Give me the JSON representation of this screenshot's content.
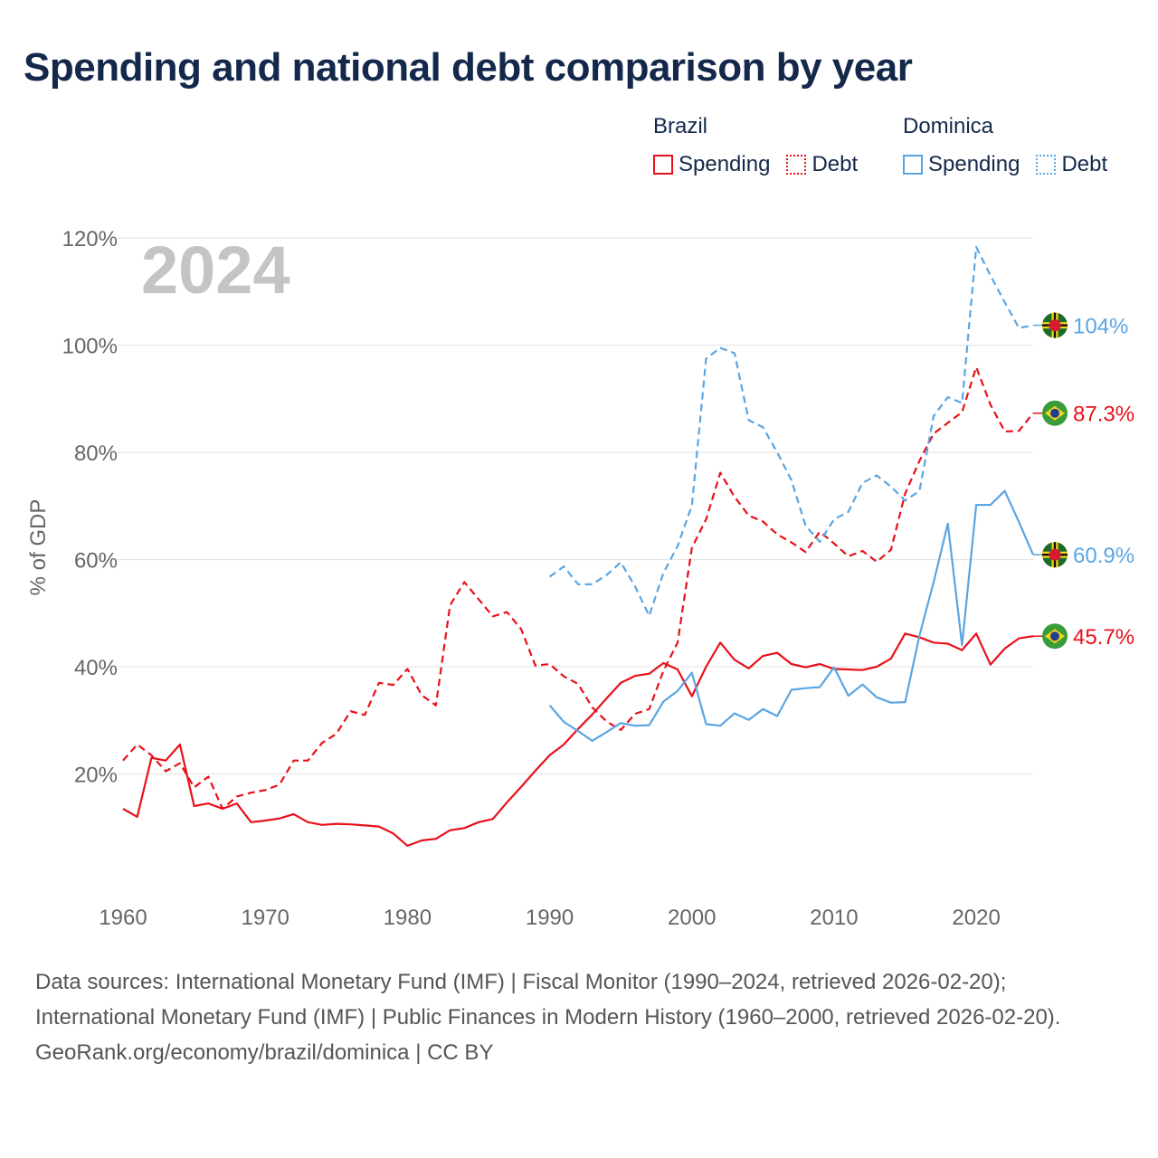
{
  "title": "Spending and national debt comparison by year",
  "legend": {
    "groups": [
      {
        "country": "Brazil",
        "color": "#e8101a",
        "items": [
          {
            "label": "Spending",
            "style": "solid"
          },
          {
            "label": "Debt",
            "style": "dotted"
          }
        ]
      },
      {
        "country": "Dominica",
        "color": "#5aa5e2",
        "items": [
          {
            "label": "Spending",
            "style": "solid"
          },
          {
            "label": "Debt",
            "style": "dotted"
          }
        ]
      }
    ]
  },
  "footer": {
    "sources": "Data sources: International Monetary Fund (IMF) | Fiscal Monitor (1990–2024, retrieved 2026-02-20); International Monetary Fund (IMF) | Public Finances in Modern History (1960–2000, retrieved 2026-02-20).",
    "credit": "GeoRank.org/economy/brazil/dominica | CC BY"
  },
  "chart_data": {
    "type": "line",
    "title": "Spending and national debt comparison by year",
    "year_label": "2024",
    "xlabel": "",
    "ylabel": "% of GDP",
    "xlim": [
      1960,
      2024
    ],
    "ylim": [
      0,
      120
    ],
    "x_ticks": [
      1960,
      1970,
      1980,
      1990,
      2000,
      2010,
      2020
    ],
    "y_ticks": [
      20,
      40,
      60,
      80,
      100,
      120
    ],
    "y_tick_labels": [
      "20%",
      "40%",
      "60%",
      "80%",
      "100%",
      "120%"
    ],
    "grid": true,
    "colors": {
      "brazil": "#e8101a",
      "dominica": "#5aa5e2",
      "grid": "#e6e6e6",
      "axis_text": "#666666",
      "year_watermark": "#c4c4c4"
    },
    "series": [
      {
        "name": "Brazil Spending",
        "country": "Brazil",
        "flag": "brazil-flag-icon",
        "color": "#e8101a",
        "dash": "solid",
        "end_label": "45.7%",
        "x": [
          1960,
          1961,
          1962,
          1963,
          1964,
          1965,
          1966,
          1967,
          1968,
          1969,
          1970,
          1971,
          1972,
          1973,
          1974,
          1975,
          1976,
          1977,
          1978,
          1979,
          1980,
          1981,
          1982,
          1983,
          1984,
          1985,
          1986,
          1987,
          1988,
          1989,
          1990,
          1991,
          1992,
          1993,
          1994,
          1995,
          1996,
          1997,
          1998,
          1999,
          2000,
          2001,
          2002,
          2003,
          2004,
          2005,
          2006,
          2007,
          2008,
          2009,
          2010,
          2011,
          2012,
          2013,
          2014,
          2015,
          2016,
          2017,
          2018,
          2019,
          2020,
          2021,
          2022,
          2023,
          2024
        ],
        "y": [
          13.5,
          12,
          23,
          22.5,
          25.5,
          14,
          14.5,
          13.5,
          14.5,
          11,
          11.3,
          11.7,
          12.5,
          11,
          10.5,
          10.7,
          10.6,
          10.4,
          10.2,
          8.9,
          6.6,
          7.6,
          7.9,
          9.5,
          9.9,
          11,
          11.6,
          14.7,
          17.6,
          20.6,
          23.5,
          25.5,
          28.4,
          31.1,
          34.1,
          37,
          38.3,
          38.7,
          40.7,
          39.5,
          34.5,
          40,
          44.5,
          41.3,
          39.7,
          42,
          42.6,
          40.5,
          39.9,
          40.5,
          39.6,
          39.5,
          39.4,
          40,
          41.5,
          46.2,
          45.5,
          44.5,
          44.3,
          43.1,
          46.2,
          40.4,
          43.4,
          45.3,
          45.7
        ]
      },
      {
        "name": "Brazil Debt",
        "country": "Brazil",
        "flag": "brazil-flag-icon",
        "color": "#e8101a",
        "dash": "dashed",
        "end_label": "87.3%",
        "x": [
          1960,
          1961,
          1962,
          1963,
          1964,
          1965,
          1966,
          1967,
          1968,
          1969,
          1970,
          1971,
          1972,
          1973,
          1974,
          1975,
          1976,
          1977,
          1978,
          1979,
          1980,
          1981,
          1982,
          1983,
          1984,
          1985,
          1986,
          1987,
          1988,
          1989,
          1990,
          1991,
          1992,
          1993,
          1994,
          1995,
          1996,
          1997,
          1998,
          1999,
          2000,
          2001,
          2002,
          2003,
          2004,
          2005,
          2006,
          2007,
          2008,
          2009,
          2010,
          2011,
          2012,
          2013,
          2014,
          2015,
          2016,
          2017,
          2018,
          2019,
          2020,
          2021,
          2022,
          2023,
          2024
        ],
        "y": [
          22.5,
          25.5,
          23.5,
          20.5,
          22,
          17.5,
          19.5,
          13.5,
          15.8,
          16.5,
          17,
          18,
          22.5,
          22.5,
          25.8,
          27.5,
          31.7,
          31,
          37,
          36.6,
          39.6,
          34.7,
          32.8,
          51.5,
          55.8,
          52.6,
          49.4,
          50.2,
          47,
          40.2,
          40.5,
          38.2,
          36.8,
          32.4,
          29.8,
          28.2,
          31.2,
          32.1,
          39.2,
          44.5,
          62.2,
          67.5,
          76.2,
          71.7,
          68.2,
          67.1,
          64.7,
          63.2,
          61.4,
          65.2,
          63,
          60.6,
          61.6,
          59.6,
          61.8,
          72.3,
          78.4,
          83.5,
          85.5,
          87.5,
          95.9,
          88.9,
          83.9,
          84,
          87.3
        ]
      },
      {
        "name": "Dominica Spending",
        "country": "Dominica",
        "flag": "dominica-flag-icon",
        "color": "#5aa5e2",
        "dash": "solid",
        "end_label": "60.9%",
        "x": [
          1990,
          1991,
          1992,
          1993,
          1994,
          1995,
          1996,
          1997,
          1998,
          1999,
          2000,
          2001,
          2002,
          2003,
          2004,
          2005,
          2006,
          2007,
          2008,
          2009,
          2010,
          2011,
          2012,
          2013,
          2014,
          2015,
          2016,
          2017,
          2018,
          2019,
          2020,
          2021,
          2022,
          2023,
          2024
        ],
        "y": [
          32.8,
          29.7,
          28,
          26.2,
          27.8,
          29.5,
          29,
          29.1,
          33.5,
          35.5,
          38.9,
          29.3,
          29,
          31.3,
          30.1,
          32.1,
          30.8,
          35.7,
          36,
          36.2,
          39.9,
          34.6,
          36.7,
          34.3,
          33.3,
          33.4,
          45.8,
          55.8,
          66.7,
          44,
          70.2,
          70.2,
          72.8,
          67,
          60.9
        ]
      },
      {
        "name": "Dominica Debt",
        "country": "Dominica",
        "flag": "dominica-flag-icon",
        "color": "#5aa5e2",
        "dash": "dashed",
        "end_label": "104%",
        "x": [
          1990,
          1991,
          1992,
          1993,
          1994,
          1995,
          1996,
          1997,
          1998,
          1999,
          2000,
          2001,
          2002,
          2003,
          2004,
          2005,
          2006,
          2007,
          2008,
          2009,
          2010,
          2011,
          2012,
          2013,
          2014,
          2015,
          2016,
          2017,
          2018,
          2019,
          2020,
          2021,
          2022,
          2023,
          2024
        ],
        "y": [
          56.8,
          58.7,
          55.4,
          55.4,
          57.1,
          59.5,
          55,
          49.5,
          57.5,
          62.5,
          70.1,
          97.5,
          99.5,
          98.5,
          86,
          84.7,
          80,
          74.8,
          66.3,
          63.3,
          67.5,
          68.9,
          74.3,
          75.7,
          73.6,
          71,
          72.8,
          86.8,
          90.3,
          89.2,
          118.3,
          113,
          108,
          103.2,
          103.7
        ]
      }
    ]
  }
}
